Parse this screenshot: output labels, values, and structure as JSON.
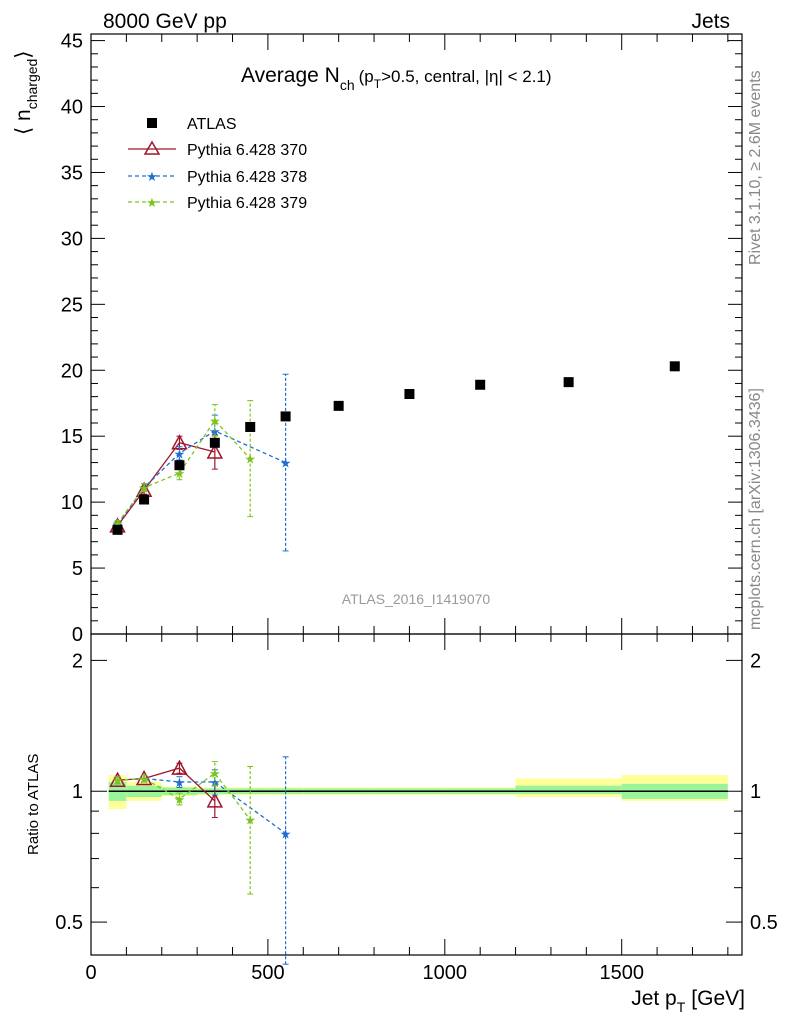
{
  "header": {
    "left": "8000 GeV pp",
    "right": "Jets",
    "analysis": "ATLAS_2016_I1419070",
    "side_top": "Rivet 3.1.10, ≥ 2.6M events",
    "side_bottom": "mcplots.cern.ch [arXiv:1306.3436]"
  },
  "colors": {
    "data": "#000000",
    "pythia370": "#a0152a",
    "pythia378": "#1e6fd0",
    "pythia379": "#7ec41e",
    "band_inner": "#9af59a",
    "band_outer": "#ffff99"
  },
  "chart_data": [
    {
      "type": "scatter",
      "title": "Average N_ch (p_T>0.5, central, |η| < 2.1)",
      "title_main": "Average N",
      "title_sub": "ch",
      "title_rest_a": "(p",
      "title_rest_sub": "T",
      "title_rest_b": ">0.5, central, |η| < 2.1)",
      "ylabel": "⟨ n",
      "ylabel_sub": "charged",
      "ylabel_close": "⟩",
      "ylim": [
        0,
        45.5
      ],
      "xlim": [
        0,
        1840
      ],
      "yticks": [
        0,
        5,
        10,
        15,
        20,
        25,
        30,
        35,
        40,
        45
      ],
      "legend_position": "top-left",
      "series": [
        {
          "name": "ATLAS",
          "marker": "square",
          "x": [
            75,
            150,
            250,
            350,
            450,
            550,
            700,
            900,
            1100,
            1350,
            1650
          ],
          "y": [
            7.9,
            10.2,
            12.8,
            14.5,
            15.7,
            16.5,
            17.3,
            18.2,
            18.9,
            19.1,
            20.3
          ],
          "xerr": [
            25,
            50,
            50,
            50,
            50,
            50,
            100,
            100,
            100,
            150,
            150
          ]
        },
        {
          "name": "Pythia 6.428 370",
          "marker": "triangle",
          "x": [
            75,
            150,
            250,
            350
          ],
          "y": [
            8.2,
            10.9,
            14.5,
            13.8
          ],
          "yerr": [
            0.2,
            0.3,
            0.5,
            1.3
          ]
        },
        {
          "name": "Pythia 6.428 378",
          "marker": "star",
          "x": [
            75,
            150,
            250,
            350,
            550
          ],
          "y": [
            8.3,
            11.1,
            13.7,
            15.4,
            13.0
          ],
          "yerr": [
            0.2,
            0.3,
            0.5,
            1.2,
            6.7
          ]
        },
        {
          "name": "Pythia 6.428 379",
          "marker": "star",
          "x": [
            75,
            150,
            250,
            350,
            450
          ],
          "y": [
            8.4,
            11.1,
            12.2,
            16.2,
            13.3
          ],
          "yerr": [
            0.2,
            0.3,
            0.5,
            1.2,
            4.4
          ]
        }
      ]
    },
    {
      "type": "scatter",
      "ylabel": "Ratio to ATLAS",
      "xlabel": "Jet p",
      "xlabel_sub": "T",
      "xlabel_unit": "[GeV]",
      "yscale": "log",
      "ylim": [
        0.42,
        2.3
      ],
      "xlim": [
        0,
        1840
      ],
      "yticks": [
        0.5,
        1,
        2
      ],
      "xticks": [
        0,
        500,
        1000,
        1500
      ],
      "band": {
        "edges": [
          50,
          100,
          200,
          300,
          400,
          500,
          600,
          800,
          1000,
          1200,
          1500,
          1800
        ],
        "inner_lo": [
          0.95,
          0.97,
          0.98,
          0.985,
          0.985,
          0.985,
          0.985,
          0.985,
          0.985,
          0.985,
          0.96
        ],
        "inner_hi": [
          1.05,
          1.03,
          1.02,
          1.015,
          1.015,
          1.015,
          1.015,
          1.015,
          1.015,
          1.03,
          1.04
        ],
        "outer_lo": [
          0.91,
          0.95,
          0.975,
          0.98,
          0.98,
          0.98,
          0.98,
          0.98,
          0.98,
          0.97,
          0.95
        ],
        "outer_hi": [
          1.09,
          1.05,
          1.025,
          1.02,
          1.02,
          1.02,
          1.02,
          1.02,
          1.02,
          1.07,
          1.09
        ]
      },
      "series": [
        {
          "name": "Pythia 6.428 370",
          "x": [
            75,
            150,
            250,
            350
          ],
          "y": [
            1.06,
            1.07,
            1.13,
            0.95
          ],
          "yerr": [
            0.02,
            0.02,
            0.03,
            0.08
          ]
        },
        {
          "name": "Pythia 6.428 378",
          "x": [
            75,
            150,
            250,
            350,
            550
          ],
          "y": [
            1.06,
            1.07,
            1.05,
            1.05,
            0.8
          ],
          "yerr": [
            0.02,
            0.02,
            0.03,
            0.07,
            0.4
          ]
        },
        {
          "name": "Pythia 6.428 379",
          "x": [
            75,
            150,
            250,
            350,
            450
          ],
          "y": [
            1.06,
            1.07,
            0.96,
            1.1,
            0.86
          ],
          "yerr": [
            0.02,
            0.02,
            0.03,
            0.07,
            0.28
          ]
        }
      ]
    }
  ]
}
